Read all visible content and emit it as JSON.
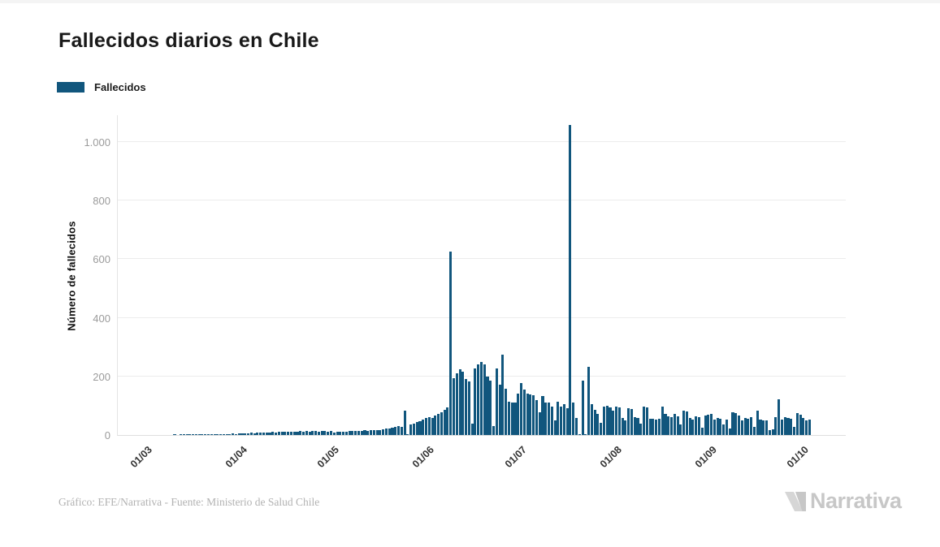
{
  "title": "Fallecidos diarios en Chile",
  "legend": {
    "label": "Fallecidos"
  },
  "colors": {
    "bar": "#11567D",
    "grid": "#ececec",
    "axis": "#dedede",
    "y_tick_label": "#9b9b9b",
    "x_tick_label": "#333333",
    "title": "#191919",
    "footer": "#b2b2b2",
    "logo_light": "#d6d6d6",
    "logo_dark": "#c7c7c7"
  },
  "y_axis": {
    "label": "Número de fallecidos",
    "ticks": [
      {
        "value": 0,
        "label": "0"
      },
      {
        "value": 200,
        "label": "200"
      },
      {
        "value": 400,
        "label": "400"
      },
      {
        "value": 600,
        "label": "600"
      },
      {
        "value": 800,
        "label": "800"
      },
      {
        "value": 1000,
        "label": "1.000"
      }
    ]
  },
  "x_axis": {
    "ticks": [
      {
        "label": "01/03",
        "day": 0
      },
      {
        "label": "01/04",
        "day": 31
      },
      {
        "label": "01/05",
        "day": 61
      },
      {
        "label": "01/06",
        "day": 92
      },
      {
        "label": "01/07",
        "day": 122
      },
      {
        "label": "01/08",
        "day": 153
      },
      {
        "label": "01/09",
        "day": 184
      },
      {
        "label": "01/10",
        "day": 214
      }
    ]
  },
  "footer": {
    "credit": "Gráfico: EFE/Narrativa - Fuente: Ministerio de Salud Chile"
  },
  "logo": {
    "text": "Narrativa"
  },
  "chart_data": {
    "type": "bar",
    "title": "Fallecidos diarios en Chile",
    "series_name": "Fallecidos",
    "xlabel": "",
    "ylabel": "Número de fallecidos",
    "ylim": [
      0,
      1100
    ],
    "y_tick_values": [
      0,
      200,
      400,
      600,
      800,
      1000
    ],
    "x_tick_labels": [
      "01/03",
      "01/04",
      "01/05",
      "01/06",
      "01/07",
      "01/08",
      "01/09",
      "01/10"
    ],
    "grid": "horizontal",
    "legend_position": "top-left",
    "start_date": "2020-03-01",
    "frequency": "daily",
    "values": [
      0,
      0,
      0,
      0,
      0,
      0,
      0,
      0,
      0,
      1,
      0,
      1,
      1,
      1,
      1,
      1,
      1,
      2,
      2,
      2,
      2,
      3,
      2,
      3,
      3,
      4,
      3,
      4,
      5,
      4,
      6,
      5,
      6,
      6,
      7,
      6,
      8,
      7,
      8,
      9,
      8,
      10,
      9,
      11,
      10,
      12,
      11,
      12,
      10,
      11,
      13,
      12,
      13,
      11,
      13,
      14,
      12,
      14,
      13,
      12,
      14,
      9,
      11,
      10,
      12,
      11,
      13,
      14,
      13,
      15,
      14,
      16,
      15,
      17,
      16,
      18,
      17,
      19,
      21,
      23,
      25,
      28,
      31,
      29,
      82,
      3,
      37,
      40,
      43,
      47,
      52,
      57,
      61,
      57,
      66,
      72,
      78,
      85,
      95,
      627,
      193,
      210,
      224,
      215,
      190,
      183,
      40,
      228,
      240,
      248,
      240,
      200,
      186,
      30,
      227,
      173,
      274,
      159,
      113,
      112,
      110,
      140,
      178,
      156,
      140,
      138,
      136,
      118,
      77,
      132,
      112,
      110,
      96,
      49,
      113,
      98,
      105,
      92,
      1057,
      110,
      58,
      2,
      185,
      2,
      233,
      104,
      85,
      71,
      41,
      96,
      99,
      93,
      84,
      97,
      95,
      58,
      49,
      92,
      90,
      62,
      58,
      40,
      97,
      94,
      55,
      55,
      52,
      55,
      97,
      71,
      64,
      62,
      71,
      64,
      36,
      84,
      80,
      58,
      52,
      64,
      62,
      25,
      67,
      70,
      71,
      52,
      58,
      56,
      36,
      52,
      22,
      77,
      74,
      67,
      49,
      58,
      56,
      62,
      27,
      84,
      52,
      50,
      49,
      16,
      19,
      60,
      123,
      52,
      62,
      58,
      55,
      27,
      74,
      70,
      58,
      49,
      52
    ],
    "notable_points": [
      {
        "date": "2020-06-08",
        "value": 627
      },
      {
        "date": "2020-07-17",
        "value": 1057
      }
    ]
  }
}
